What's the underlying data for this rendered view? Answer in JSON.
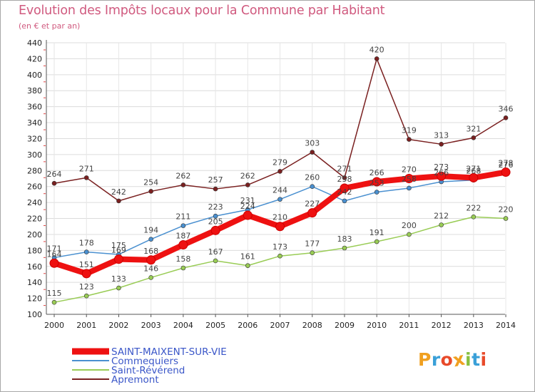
{
  "header": {
    "title": "Evolution des Impôts locaux pour la Commune par Habitant",
    "subtitle": "(en € et par an)"
  },
  "logo": {
    "text": "Proxiti",
    "colors": [
      "#f0a020",
      "#3aa0d8",
      "#e84a2a",
      "#f0a020",
      "#88c040",
      "#3aa0d8",
      "#e84a2a"
    ]
  },
  "chart_data": {
    "type": "line",
    "x": [
      "2000",
      "2001",
      "2002",
      "2003",
      "2004",
      "2005",
      "2006",
      "2007",
      "2008",
      "2009",
      "2010",
      "2011",
      "2012",
      "2013",
      "2014"
    ],
    "ylim": [
      100,
      440
    ],
    "yticks": [
      100,
      120,
      140,
      160,
      180,
      200,
      220,
      240,
      260,
      280,
      300,
      320,
      340,
      360,
      380,
      400,
      420,
      440
    ],
    "grid": true,
    "legend_position": "bottom-left",
    "series": [
      {
        "name": "SAINT-MAIXENT-SUR-VIE",
        "color": "#ee1111",
        "values": [
          164,
          151,
          169,
          168,
          187,
          205,
          224,
          210,
          227,
          258,
          266,
          270,
          273,
          271,
          278
        ]
      },
      {
        "name": "Commequiers",
        "color": "#4a90d0",
        "values": [
          171,
          178,
          175,
          194,
          211,
          223,
          231,
          244,
          260,
          242,
          253,
          258,
          266,
          268,
          276
        ]
      },
      {
        "name": "Saint-Révérend",
        "color": "#99cc55",
        "values": [
          115,
          123,
          133,
          146,
          158,
          167,
          161,
          173,
          177,
          183,
          191,
          200,
          212,
          222,
          220
        ]
      },
      {
        "name": "Apremont",
        "color": "#7a2020",
        "values": [
          264,
          271,
          242,
          254,
          262,
          257,
          262,
          279,
          303,
          271,
          420,
          319,
          313,
          321,
          346
        ]
      }
    ]
  }
}
